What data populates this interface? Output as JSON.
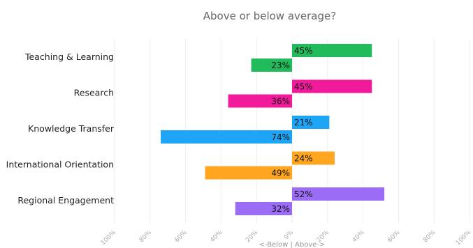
{
  "chart_data": {
    "type": "bar",
    "orientation": "horizontal-diverging",
    "title": "Above or below average?",
    "xlabel": "<-Below | Above->",
    "xlim": [
      -100,
      100
    ],
    "x_ticks": [
      -100,
      -80,
      -60,
      -40,
      -20,
      0,
      20,
      40,
      60,
      80,
      100
    ],
    "x_tick_labels": [
      "100%",
      "80%",
      "60%",
      "40%",
      "20%",
      "0%",
      "20%",
      "40%",
      "60%",
      "80%",
      "100%"
    ],
    "categories": [
      "Teaching & Learning",
      "Research",
      "Knowledge Transfer",
      "International Orientation",
      "Regional Engagement"
    ],
    "colors": [
      "#22bb5b",
      "#f01a9a",
      "#1fa5f5",
      "#ffa51f",
      "#9b6cf5"
    ],
    "series": [
      {
        "values": [
          45,
          45,
          21,
          24,
          52
        ],
        "labels": [
          "45%",
          "45%",
          "21%",
          "24%",
          "52%"
        ]
      },
      {
        "values": [
          -23,
          -36,
          -74,
          -49,
          -32
        ],
        "labels": [
          "23%",
          "36%",
          "74%",
          "49%",
          "32%"
        ]
      }
    ],
    "grid": true
  }
}
